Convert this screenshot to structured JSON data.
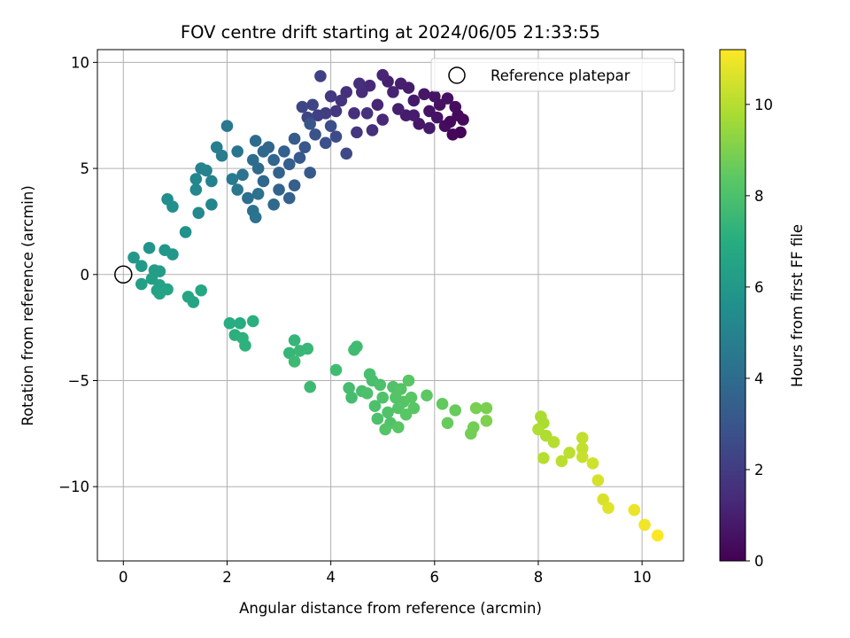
{
  "chart_data": {
    "type": "scatter",
    "title": "FOV centre drift starting at 2024/06/05 21:33:55",
    "xlabel": "Angular distance from reference (arcmin)",
    "ylabel": "Rotation from reference (arcmin)",
    "xlim": [
      -0.5,
      10.8
    ],
    "ylim": [
      -13.5,
      10.6
    ],
    "xticks": [
      0,
      2,
      4,
      6,
      8,
      10
    ],
    "yticks": [
      -10,
      -5,
      0,
      5,
      10
    ],
    "xtick_labels": [
      "0",
      "2",
      "4",
      "6",
      "8",
      "10"
    ],
    "ytick_labels": [
      "−10",
      "−5",
      "0",
      "5",
      "10"
    ],
    "grid": true,
    "legend": {
      "location": "top-right",
      "entries": [
        "Reference platepar"
      ]
    },
    "colorbar": {
      "label": "Hours from first FF file",
      "colormap": "viridis",
      "range": [
        0,
        11.2
      ],
      "ticks": [
        0,
        2,
        4,
        6,
        8,
        10
      ],
      "tick_labels": [
        "0",
        "2",
        "4",
        "6",
        "8",
        "10"
      ]
    },
    "reference_point": {
      "name": "Reference platepar",
      "x": 0,
      "y": 0
    },
    "series": [
      {
        "colored_by": "hours",
        "points": [
          {
            "x": 6.5,
            "y": 6.7,
            "h": 0.1
          },
          {
            "x": 6.35,
            "y": 6.6,
            "h": 0.2
          },
          {
            "x": 6.55,
            "y": 7.3,
            "h": 0.3
          },
          {
            "x": 6.45,
            "y": 7.5,
            "h": 0.3
          },
          {
            "x": 6.4,
            "y": 7.9,
            "h": 0.4
          },
          {
            "x": 6.25,
            "y": 8.3,
            "h": 0.5
          },
          {
            "x": 6.2,
            "y": 7.0,
            "h": 0.4
          },
          {
            "x": 6.3,
            "y": 7.2,
            "h": 0.3
          },
          {
            "x": 6.1,
            "y": 8.0,
            "h": 0.5
          },
          {
            "x": 6.0,
            "y": 8.4,
            "h": 0.6
          },
          {
            "x": 5.9,
            "y": 7.7,
            "h": 0.6
          },
          {
            "x": 5.8,
            "y": 8.5,
            "h": 0.7
          },
          {
            "x": 5.7,
            "y": 7.1,
            "h": 0.7
          },
          {
            "x": 5.6,
            "y": 8.2,
            "h": 0.8
          },
          {
            "x": 5.5,
            "y": 8.8,
            "h": 0.9
          },
          {
            "x": 5.45,
            "y": 7.5,
            "h": 0.9
          },
          {
            "x": 5.35,
            "y": 9.0,
            "h": 1.0
          },
          {
            "x": 5.2,
            "y": 8.6,
            "h": 1.1
          },
          {
            "x": 5.1,
            "y": 9.1,
            "h": 1.0
          },
          {
            "x": 5.0,
            "y": 9.4,
            "h": 1.2
          },
          {
            "x": 4.9,
            "y": 8.0,
            "h": 1.2
          },
          {
            "x": 4.75,
            "y": 8.9,
            "h": 1.3
          },
          {
            "x": 4.6,
            "y": 8.6,
            "h": 1.4
          },
          {
            "x": 4.55,
            "y": 9.0,
            "h": 1.5
          },
          {
            "x": 4.45,
            "y": 7.6,
            "h": 1.5
          },
          {
            "x": 4.3,
            "y": 8.6,
            "h": 1.6
          },
          {
            "x": 4.2,
            "y": 8.2,
            "h": 1.7
          },
          {
            "x": 4.1,
            "y": 7.7,
            "h": 1.8
          },
          {
            "x": 4.0,
            "y": 8.4,
            "h": 1.9
          },
          {
            "x": 3.9,
            "y": 7.6,
            "h": 2.0
          },
          {
            "x": 3.8,
            "y": 9.35,
            "h": 2.2
          },
          {
            "x": 3.75,
            "y": 7.5,
            "h": 2.1
          },
          {
            "x": 3.65,
            "y": 8.0,
            "h": 2.3
          },
          {
            "x": 3.55,
            "y": 7.4,
            "h": 2.3
          },
          {
            "x": 3.45,
            "y": 7.9,
            "h": 2.4
          },
          {
            "x": 5.3,
            "y": 7.8,
            "h": 1.0
          },
          {
            "x": 5.6,
            "y": 7.5,
            "h": 0.9
          },
          {
            "x": 5.0,
            "y": 7.3,
            "h": 1.3
          },
          {
            "x": 4.8,
            "y": 6.8,
            "h": 1.5
          },
          {
            "x": 4.5,
            "y": 6.7,
            "h": 1.8
          },
          {
            "x": 4.7,
            "y": 7.6,
            "h": 1.6
          },
          {
            "x": 5.9,
            "y": 6.9,
            "h": 0.8
          },
          {
            "x": 6.05,
            "y": 7.4,
            "h": 0.6
          },
          {
            "x": 4.3,
            "y": 5.7,
            "h": 2.5
          },
          {
            "x": 4.1,
            "y": 6.5,
            "h": 2.6
          },
          {
            "x": 4.0,
            "y": 7.0,
            "h": 2.7
          },
          {
            "x": 3.9,
            "y": 6.2,
            "h": 2.8
          },
          {
            "x": 3.7,
            "y": 6.6,
            "h": 2.9
          },
          {
            "x": 3.6,
            "y": 7.1,
            "h": 3.0
          },
          {
            "x": 3.5,
            "y": 6.0,
            "h": 3.1
          },
          {
            "x": 3.4,
            "y": 5.5,
            "h": 3.2
          },
          {
            "x": 3.3,
            "y": 6.4,
            "h": 3.3
          },
          {
            "x": 3.2,
            "y": 5.2,
            "h": 3.4
          },
          {
            "x": 3.1,
            "y": 5.8,
            "h": 3.5
          },
          {
            "x": 3.0,
            "y": 4.8,
            "h": 3.6
          },
          {
            "x": 2.9,
            "y": 5.4,
            "h": 3.7
          },
          {
            "x": 2.8,
            "y": 6.0,
            "h": 3.7
          },
          {
            "x": 2.7,
            "y": 4.4,
            "h": 3.8
          },
          {
            "x": 2.6,
            "y": 5.0,
            "h": 3.9
          },
          {
            "x": 2.5,
            "y": 5.4,
            "h": 4.0
          },
          {
            "x": 2.55,
            "y": 6.3,
            "h": 4.0
          },
          {
            "x": 2.4,
            "y": 3.6,
            "h": 4.1
          },
          {
            "x": 2.5,
            "y": 3.0,
            "h": 4.2
          },
          {
            "x": 2.55,
            "y": 2.7,
            "h": 4.3
          },
          {
            "x": 2.6,
            "y": 3.8,
            "h": 4.2
          },
          {
            "x": 2.3,
            "y": 4.7,
            "h": 4.3
          },
          {
            "x": 2.2,
            "y": 5.8,
            "h": 4.4
          },
          {
            "x": 2.2,
            "y": 4.0,
            "h": 4.5
          },
          {
            "x": 2.0,
            "y": 7.0,
            "h": 4.5
          },
          {
            "x": 2.1,
            "y": 4.5,
            "h": 4.6
          },
          {
            "x": 1.9,
            "y": 5.6,
            "h": 4.7
          },
          {
            "x": 1.8,
            "y": 6.0,
            "h": 4.8
          },
          {
            "x": 1.7,
            "y": 4.4,
            "h": 4.9
          },
          {
            "x": 1.6,
            "y": 4.9,
            "h": 5.0
          },
          {
            "x": 1.5,
            "y": 5.0,
            "h": 5.0
          },
          {
            "x": 1.7,
            "y": 3.3,
            "h": 5.1
          },
          {
            "x": 1.4,
            "y": 4.0,
            "h": 5.2
          },
          {
            "x": 1.45,
            "y": 2.9,
            "h": 5.3
          },
          {
            "x": 1.4,
            "y": 4.5,
            "h": 5.2
          },
          {
            "x": 3.0,
            "y": 4.0,
            "h": 3.6
          },
          {
            "x": 3.2,
            "y": 3.6,
            "h": 3.5
          },
          {
            "x": 3.3,
            "y": 4.2,
            "h": 3.4
          },
          {
            "x": 3.6,
            "y": 4.8,
            "h": 3.2
          },
          {
            "x": 2.7,
            "y": 5.8,
            "h": 3.8
          },
          {
            "x": 2.9,
            "y": 3.3,
            "h": 3.9
          },
          {
            "x": 0.85,
            "y": 3.55,
            "h": 5.5
          },
          {
            "x": 0.95,
            "y": 3.2,
            "h": 5.6
          },
          {
            "x": 1.2,
            "y": 2.0,
            "h": 5.7
          },
          {
            "x": 0.5,
            "y": 1.25,
            "h": 5.8
          },
          {
            "x": 0.8,
            "y": 1.15,
            "h": 5.9
          },
          {
            "x": 0.95,
            "y": 0.95,
            "h": 6.0
          },
          {
            "x": 0.2,
            "y": 0.8,
            "h": 6.0
          },
          {
            "x": 0.35,
            "y": 0.4,
            "h": 6.1
          },
          {
            "x": 0.6,
            "y": 0.2,
            "h": 6.2
          },
          {
            "x": 0.7,
            "y": 0.15,
            "h": 6.2
          },
          {
            "x": 0.55,
            "y": -0.2,
            "h": 6.3
          },
          {
            "x": 0.35,
            "y": -0.45,
            "h": 6.3
          },
          {
            "x": 0.7,
            "y": -0.5,
            "h": 6.4
          },
          {
            "x": 0.65,
            "y": -0.75,
            "h": 6.4
          },
          {
            "x": 0.85,
            "y": -0.7,
            "h": 6.5
          },
          {
            "x": 0.7,
            "y": -0.9,
            "h": 6.5
          },
          {
            "x": 1.25,
            "y": -1.05,
            "h": 6.6
          },
          {
            "x": 1.35,
            "y": -1.3,
            "h": 6.6
          },
          {
            "x": 1.5,
            "y": -0.75,
            "h": 6.7
          },
          {
            "x": 2.05,
            "y": -2.3,
            "h": 7.0
          },
          {
            "x": 2.25,
            "y": -2.3,
            "h": 7.0
          },
          {
            "x": 2.5,
            "y": -2.2,
            "h": 7.1
          },
          {
            "x": 2.15,
            "y": -2.85,
            "h": 7.1
          },
          {
            "x": 2.3,
            "y": -3.0,
            "h": 7.2
          },
          {
            "x": 2.35,
            "y": -3.35,
            "h": 7.2
          },
          {
            "x": 3.3,
            "y": -3.1,
            "h": 7.4
          },
          {
            "x": 3.2,
            "y": -3.7,
            "h": 7.4
          },
          {
            "x": 3.4,
            "y": -3.6,
            "h": 7.5
          },
          {
            "x": 3.55,
            "y": -3.5,
            "h": 7.5
          },
          {
            "x": 3.3,
            "y": -4.1,
            "h": 7.6
          },
          {
            "x": 3.6,
            "y": -5.3,
            "h": 7.6
          },
          {
            "x": 4.5,
            "y": -3.4,
            "h": 7.7
          },
          {
            "x": 4.45,
            "y": -3.55,
            "h": 7.7
          },
          {
            "x": 4.1,
            "y": -4.5,
            "h": 7.7
          },
          {
            "x": 4.35,
            "y": -5.35,
            "h": 7.8
          },
          {
            "x": 4.4,
            "y": -5.8,
            "h": 7.8
          },
          {
            "x": 4.6,
            "y": -5.5,
            "h": 7.9
          },
          {
            "x": 4.75,
            "y": -4.7,
            "h": 7.9
          },
          {
            "x": 4.8,
            "y": -5.0,
            "h": 7.9
          },
          {
            "x": 4.7,
            "y": -5.6,
            "h": 8.0
          },
          {
            "x": 4.85,
            "y": -6.2,
            "h": 8.0
          },
          {
            "x": 4.95,
            "y": -5.2,
            "h": 8.0
          },
          {
            "x": 5.0,
            "y": -5.8,
            "h": 8.1
          },
          {
            "x": 5.1,
            "y": -6.5,
            "h": 8.1
          },
          {
            "x": 5.15,
            "y": -7.0,
            "h": 8.1
          },
          {
            "x": 5.2,
            "y": -5.3,
            "h": 8.1
          },
          {
            "x": 5.25,
            "y": -5.8,
            "h": 8.2
          },
          {
            "x": 5.3,
            "y": -6.3,
            "h": 8.2
          },
          {
            "x": 5.35,
            "y": -5.4,
            "h": 8.2
          },
          {
            "x": 5.4,
            "y": -6.0,
            "h": 8.2
          },
          {
            "x": 5.45,
            "y": -6.6,
            "h": 8.3
          },
          {
            "x": 5.5,
            "y": -5.0,
            "h": 8.3
          },
          {
            "x": 5.55,
            "y": -5.8,
            "h": 8.3
          },
          {
            "x": 5.6,
            "y": -6.3,
            "h": 8.3
          },
          {
            "x": 5.05,
            "y": -7.3,
            "h": 8.2
          },
          {
            "x": 5.3,
            "y": -7.2,
            "h": 8.3
          },
          {
            "x": 4.9,
            "y": -6.8,
            "h": 8.0
          },
          {
            "x": 5.85,
            "y": -5.7,
            "h": 8.4
          },
          {
            "x": 6.15,
            "y": -6.1,
            "h": 8.5
          },
          {
            "x": 6.25,
            "y": -7.0,
            "h": 8.6
          },
          {
            "x": 6.4,
            "y": -6.4,
            "h": 8.6
          },
          {
            "x": 6.7,
            "y": -7.5,
            "h": 8.8
          },
          {
            "x": 6.75,
            "y": -7.2,
            "h": 8.8
          },
          {
            "x": 6.8,
            "y": -6.3,
            "h": 8.9
          },
          {
            "x": 7.0,
            "y": -6.3,
            "h": 8.9
          },
          {
            "x": 7.0,
            "y": -6.9,
            "h": 9.0
          },
          {
            "x": 8.05,
            "y": -6.7,
            "h": 9.8
          },
          {
            "x": 8.1,
            "y": -7.0,
            "h": 9.8
          },
          {
            "x": 8.0,
            "y": -7.3,
            "h": 9.9
          },
          {
            "x": 8.15,
            "y": -7.6,
            "h": 9.9
          },
          {
            "x": 8.3,
            "y": -7.9,
            "h": 10.0
          },
          {
            "x": 8.1,
            "y": -8.65,
            "h": 10.0
          },
          {
            "x": 8.45,
            "y": -8.8,
            "h": 10.1
          },
          {
            "x": 8.6,
            "y": -8.4,
            "h": 10.1
          },
          {
            "x": 8.85,
            "y": -7.7,
            "h": 10.2
          },
          {
            "x": 8.85,
            "y": -8.2,
            "h": 10.2
          },
          {
            "x": 8.85,
            "y": -8.6,
            "h": 10.3
          },
          {
            "x": 9.05,
            "y": -8.9,
            "h": 10.4
          },
          {
            "x": 9.15,
            "y": -9.7,
            "h": 10.5
          },
          {
            "x": 9.25,
            "y": -10.6,
            "h": 10.6
          },
          {
            "x": 9.35,
            "y": -11.0,
            "h": 10.7
          },
          {
            "x": 9.85,
            "y": -11.1,
            "h": 10.9
          },
          {
            "x": 10.05,
            "y": -11.8,
            "h": 11.0
          },
          {
            "x": 10.3,
            "y": -12.3,
            "h": 11.2
          }
        ]
      }
    ]
  }
}
